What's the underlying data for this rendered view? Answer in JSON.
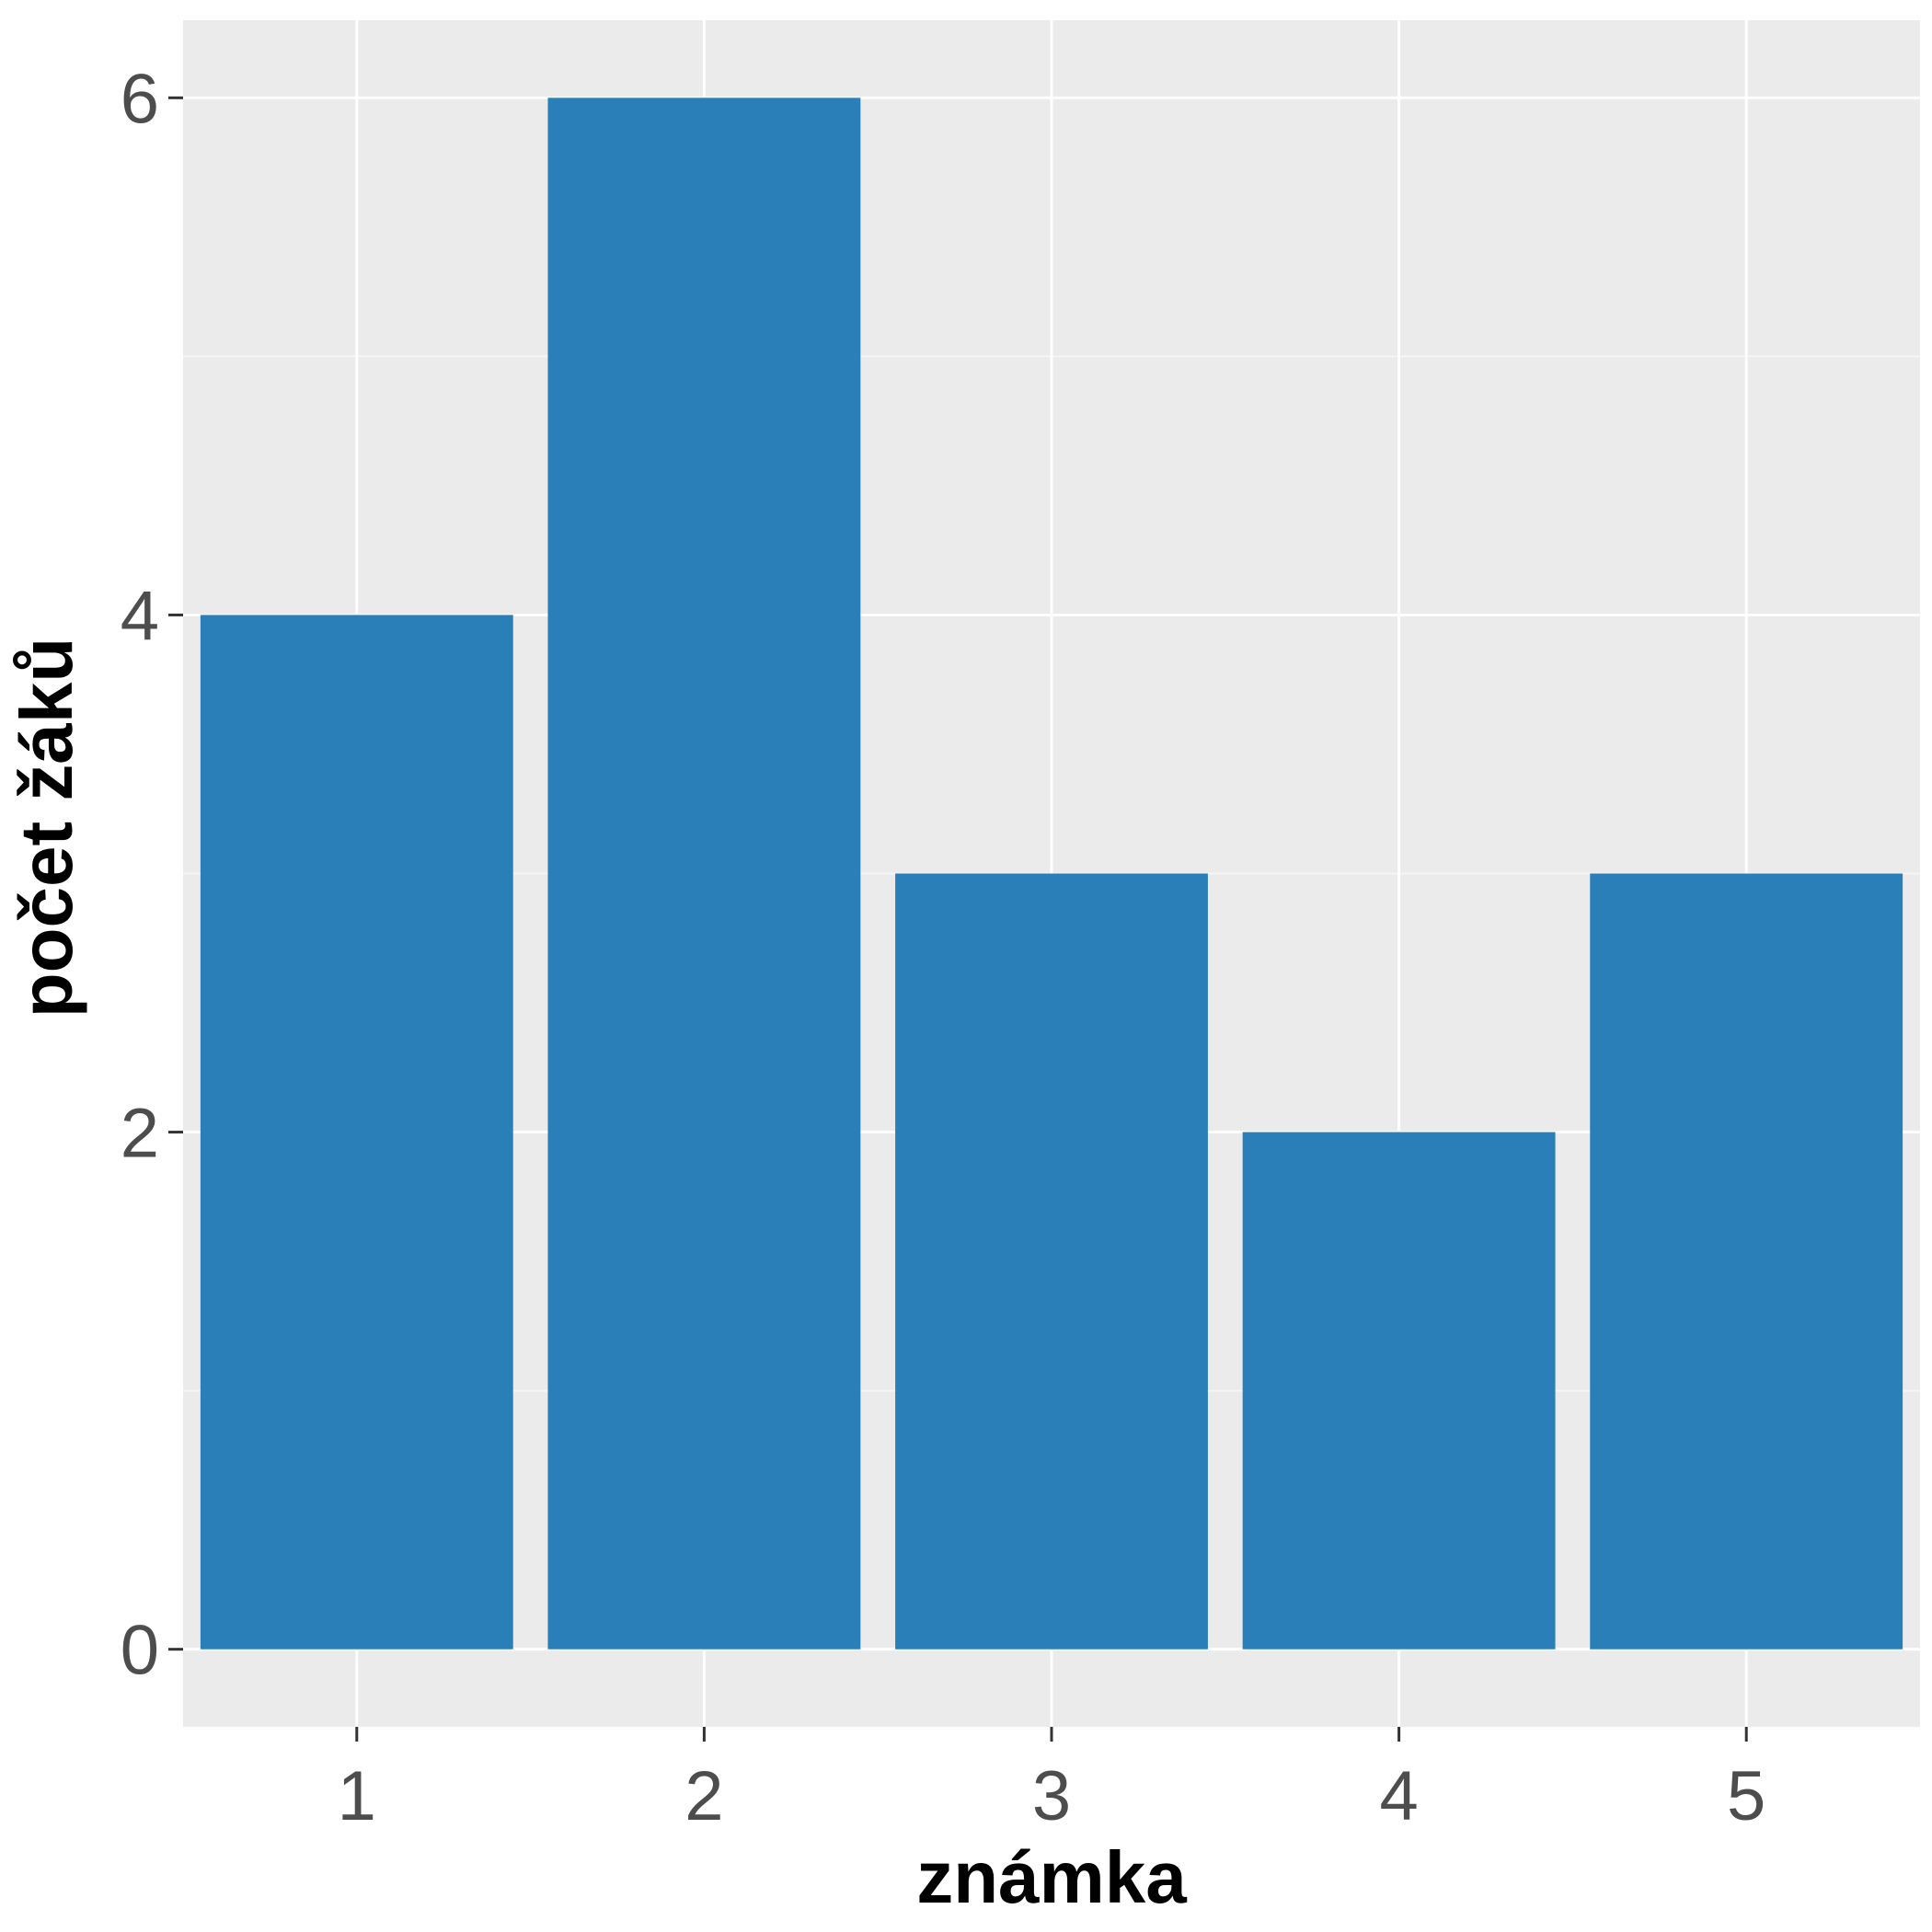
{
  "colors": {
    "panel_background": "#ebebeb",
    "grid_major": "#ffffff",
    "grid_minor": "#f5f5f5",
    "bar_fill": "#2b7fb8",
    "tick": "#333333"
  },
  "chart_data": {
    "type": "bar",
    "categories": [
      "1",
      "2",
      "3",
      "4",
      "5"
    ],
    "values": [
      4,
      6,
      3,
      2,
      3
    ],
    "xlabel": "známka",
    "ylabel": "počet žáků",
    "ylim": [
      -0.3,
      6.3
    ],
    "yticks": [
      0,
      2,
      4,
      6
    ],
    "ytick_labels": [
      "0",
      "2",
      "4",
      "6"
    ],
    "grid": true
  }
}
